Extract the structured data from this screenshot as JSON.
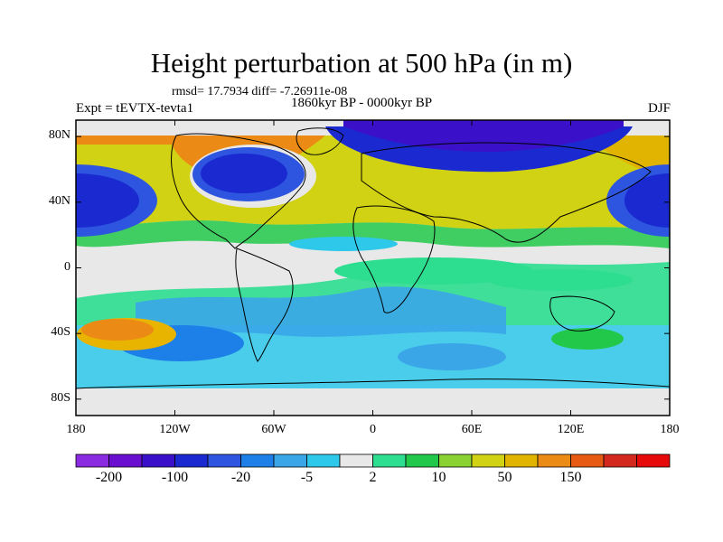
{
  "title": "Height perturbation at 500 hPa (in m)",
  "stats": "rmsd= 17.7934 diff= -7.26911e-08",
  "experiment": "Expt = tEVTX-tevta1",
  "period": "1860kyr BP - 0000kyr BP",
  "season": "DJF",
  "map": {
    "projection": "cylindrical-equidistant",
    "lon_range": [
      -180,
      180
    ],
    "lat_range": [
      -90,
      90
    ],
    "lon_ticks": [
      {
        "value": -180,
        "label": "180"
      },
      {
        "value": -120,
        "label": "120W"
      },
      {
        "value": -60,
        "label": "60W"
      },
      {
        "value": 0,
        "label": "0"
      },
      {
        "value": 60,
        "label": "60E"
      },
      {
        "value": 120,
        "label": "120E"
      },
      {
        "value": 180,
        "label": "180"
      }
    ],
    "lat_ticks": [
      {
        "value": 80,
        "label": "80N"
      },
      {
        "value": 40,
        "label": "40N"
      },
      {
        "value": 0,
        "label": "0"
      },
      {
        "value": -40,
        "label": "40S"
      },
      {
        "value": -80,
        "label": "80S"
      }
    ]
  },
  "colorbar": {
    "colors": [
      "#8a2be2",
      "#6a0fd0",
      "#3a10c8",
      "#1a2ad0",
      "#2d55e0",
      "#1d7fe8",
      "#3aa6e8",
      "#2ec8ea",
      "#e8e8e8",
      "#2ede90",
      "#22c84a",
      "#8ad232",
      "#d2d214",
      "#e0b400",
      "#eb8a14",
      "#e65a14",
      "#d2281e",
      "#e60a0a"
    ],
    "labels": [
      {
        "boundary": 1,
        "text": "-200"
      },
      {
        "boundary": 3,
        "text": "-100"
      },
      {
        "boundary": 5,
        "text": "-20"
      },
      {
        "boundary": 7,
        "text": "-5"
      },
      {
        "boundary": 9,
        "text": "2"
      },
      {
        "boundary": 11,
        "text": "10"
      },
      {
        "boundary": 13,
        "text": "50"
      },
      {
        "boundary": 15,
        "text": "150"
      }
    ]
  }
}
